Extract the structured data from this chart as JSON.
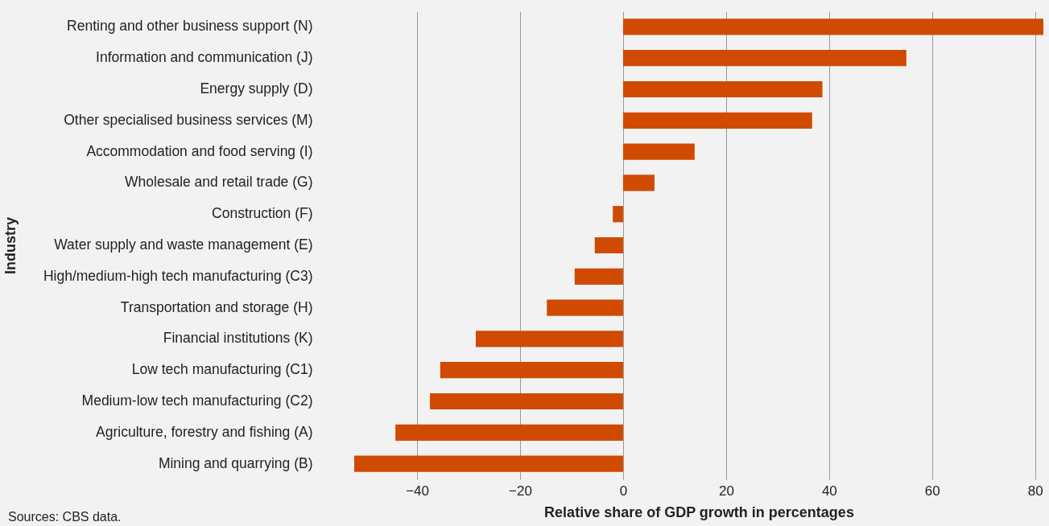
{
  "chart_data": {
    "type": "bar",
    "orientation": "horizontal",
    "xlabel": "Relative share of GDP growth in percentages",
    "ylabel": "Industry",
    "categories": [
      "Renting and other business support (N)",
      "Information and communication (J)",
      "Energy supply (D)",
      "Other specialised business services (M)",
      "Accommodation and food serving (I)",
      "Wholesale and retail trade (G)",
      "Construction (F)",
      "Water supply and waste management (E)",
      "High/medium-high tech manufacturing (C3)",
      "Transportation and storage (H)",
      "Financial institutions (K)",
      "Low tech manufacturing (C1)",
      "Medium-low tech manufacturing (C2)",
      "Agriculture, forestry and fishing (A)",
      "Mining and quarrying (B)"
    ],
    "values": [
      81.6,
      55,
      38.7,
      36.7,
      13.9,
      6.1,
      -2,
      -5.5,
      -9.4,
      -14.8,
      -28.6,
      -35.5,
      -37.5,
      -44.2,
      -52.2
    ],
    "color": "#d04a02",
    "xlim": [
      -52.2,
      81.6
    ],
    "xticks": [
      -40,
      -20,
      0,
      20,
      40,
      60,
      80
    ],
    "grid": "x",
    "annotations": [
      "Sources: CBS data."
    ]
  }
}
